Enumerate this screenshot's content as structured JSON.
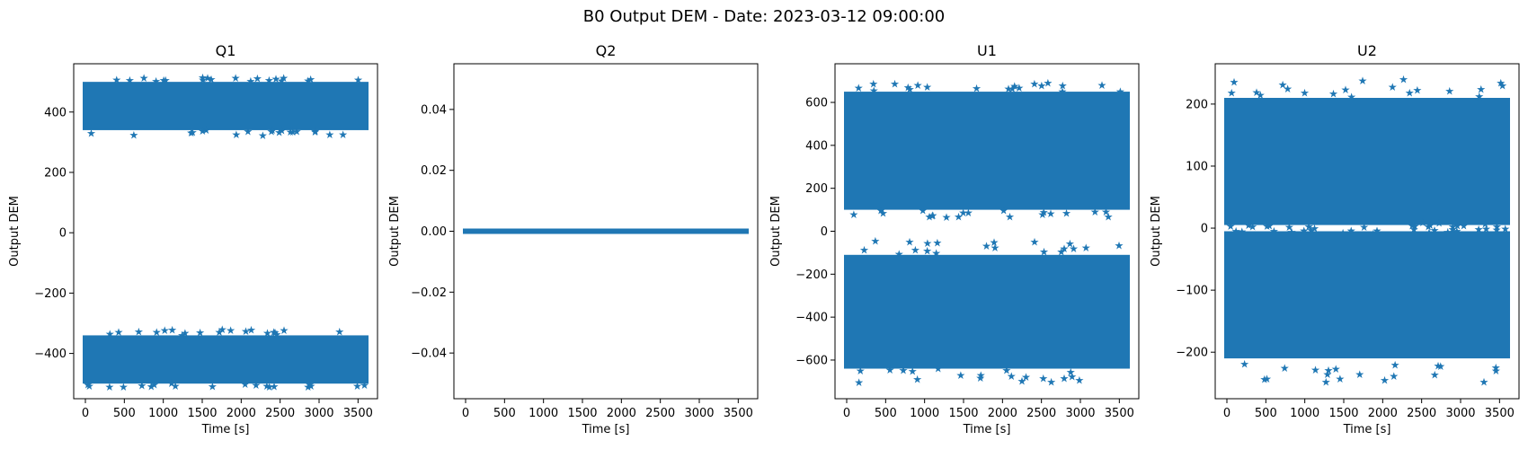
{
  "figure": {
    "suptitle": "B0 Output DEM - Date: 2023-03-12 09:00:00",
    "marker_color": "#1f77b4"
  },
  "chart_data": [
    {
      "type": "scatter",
      "title": "Q1",
      "xlabel": "Time [s]",
      "ylabel": "Output DEM",
      "xlim": [
        -150,
        3750
      ],
      "ylim": [
        -550,
        560
      ],
      "xticks": [
        0,
        500,
        1000,
        1500,
        2000,
        2500,
        3000,
        3500
      ],
      "yticks": [
        -400,
        -200,
        0,
        200,
        400
      ],
      "ytick_labels": [
        "−400",
        "−200",
        "0",
        "200",
        "400"
      ],
      "x_range": [
        0,
        3600
      ],
      "bands": [
        {
          "center": 420,
          "low": 340,
          "high": 500,
          "min": 322,
          "max": 515
        },
        {
          "center": -420,
          "low": -500,
          "high": -340,
          "min": -512,
          "max": -320
        }
      ]
    },
    {
      "type": "scatter",
      "title": "Q2",
      "xlabel": "Time [s]",
      "ylabel": "Output DEM",
      "xlim": [
        -150,
        3750
      ],
      "ylim": [
        -0.055,
        0.055
      ],
      "xticks": [
        0,
        500,
        1000,
        1500,
        2000,
        2500,
        3000,
        3500
      ],
      "yticks": [
        -0.04,
        -0.02,
        0.0,
        0.02,
        0.04
      ],
      "ytick_labels": [
        "−0.04",
        "−0.02",
        "0.00",
        "0.02",
        "0.04"
      ],
      "x_range": [
        0,
        3600
      ],
      "bands": [
        {
          "center": 0,
          "low": 0,
          "high": 0,
          "min": 0,
          "max": 0
        }
      ]
    },
    {
      "type": "scatter",
      "title": "U1",
      "xlabel": "Time [s]",
      "ylabel": "Output DEM",
      "xlim": [
        -150,
        3750
      ],
      "ylim": [
        -780,
        780
      ],
      "xticks": [
        0,
        500,
        1000,
        1500,
        2000,
        2500,
        3000,
        3500
      ],
      "yticks": [
        -600,
        -400,
        -200,
        0,
        200,
        400,
        600
      ],
      "ytick_labels": [
        "−600",
        "−400",
        "−200",
        "0",
        "200",
        "400",
        "600"
      ],
      "x_range": [
        0,
        3600
      ],
      "bands": [
        {
          "center": 380,
          "low": 100,
          "high": 650,
          "min": 65,
          "max": 690
        },
        {
          "center": -380,
          "low": -640,
          "high": -110,
          "min": -705,
          "max": -45
        }
      ]
    },
    {
      "type": "scatter",
      "title": "U2",
      "xlabel": "Time [s]",
      "ylabel": "Output DEM",
      "xlim": [
        -150,
        3750
      ],
      "ylim": [
        -275,
        265
      ],
      "xticks": [
        0,
        500,
        1000,
        1500,
        2000,
        2500,
        3000,
        3500
      ],
      "yticks": [
        -200,
        -100,
        0,
        100,
        200
      ],
      "ytick_labels": [
        "−200",
        "−100",
        "0",
        "100",
        "200"
      ],
      "x_range": [
        0,
        3600
      ],
      "bands": [
        {
          "center": 100,
          "low": 5,
          "high": 210,
          "min": -10,
          "max": 240
        },
        {
          "center": -100,
          "low": -210,
          "high": -5,
          "min": -250,
          "max": 10
        }
      ]
    }
  ]
}
